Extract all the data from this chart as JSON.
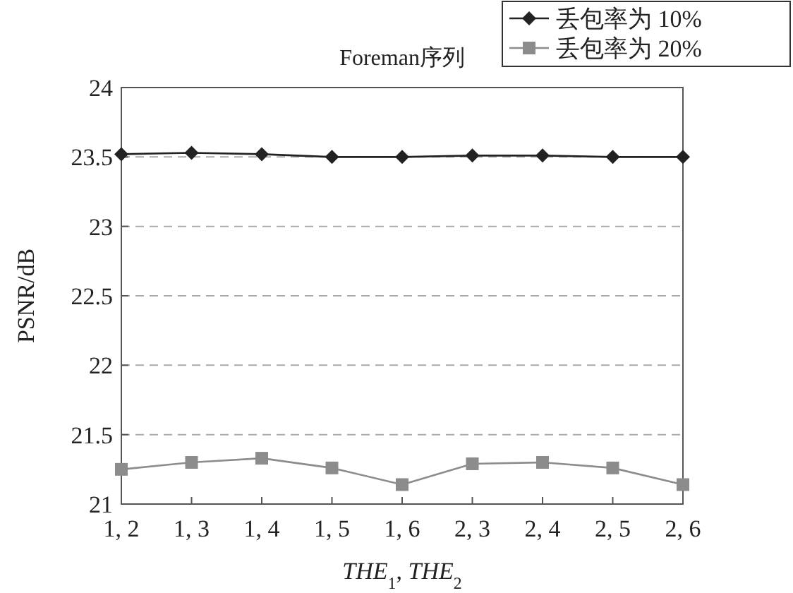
{
  "chart_data": {
    "type": "line",
    "title": "Foreman序列",
    "xlabel": "*THE*$_{1}$, *THE*$_{2}$",
    "ylabel": "PSNR/dB",
    "categories": [
      "1, 2",
      "1, 3",
      "1, 4",
      "1, 5",
      "1, 6",
      "2, 3",
      "2, 4",
      "2, 5",
      "2, 6"
    ],
    "series": [
      {
        "name": "丢包率为 10%",
        "color": "#222222",
        "marker": "diamond",
        "values": [
          23.52,
          23.53,
          23.52,
          23.5,
          23.5,
          23.51,
          23.51,
          23.5,
          23.5
        ]
      },
      {
        "name": "丢包率为 20%",
        "color": "#8c8c8c",
        "marker": "square",
        "values": [
          21.25,
          21.3,
          21.33,
          21.26,
          21.14,
          21.29,
          21.3,
          21.26,
          21.14
        ]
      }
    ],
    "ylim": [
      21,
      24
    ],
    "yticks": [
      21,
      21.5,
      22,
      22.5,
      23,
      23.5,
      24
    ],
    "grid": "y",
    "legend": "top right",
    "line_style": "solid"
  }
}
